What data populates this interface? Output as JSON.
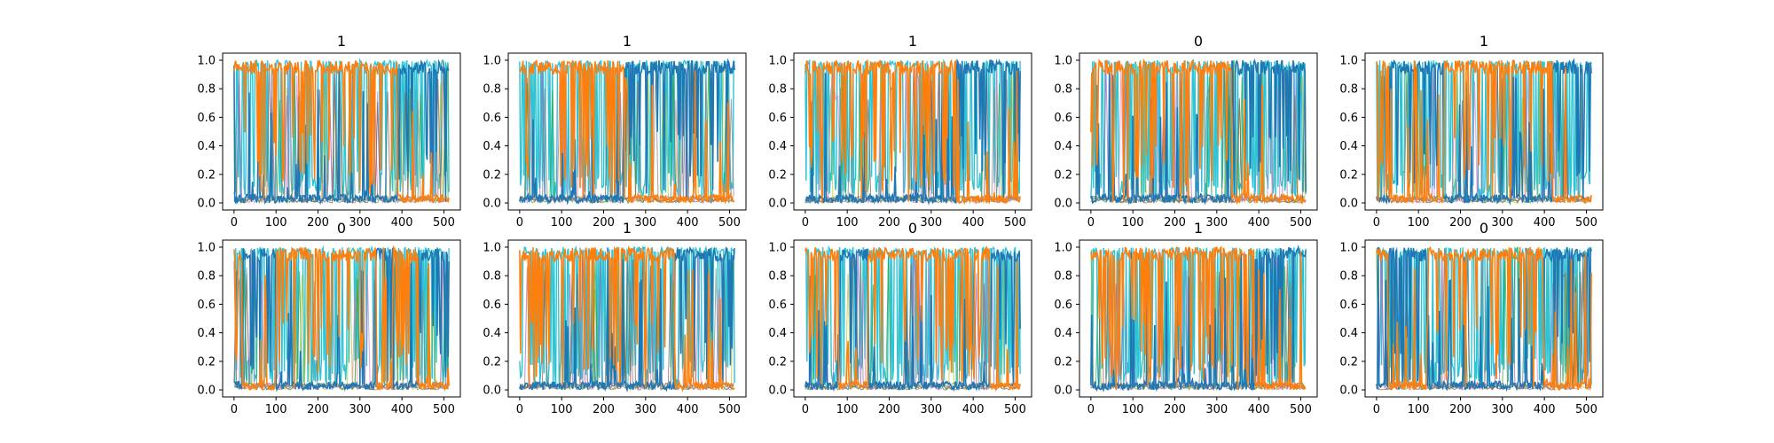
{
  "figure": {
    "layout": {
      "rows": 2,
      "cols": 5
    }
  },
  "colors": {
    "series_a": "#ff7f0e",
    "series_b": "#1f77b4",
    "series_c": "#17becf",
    "accents": [
      "#bcbd22",
      "#e377c2",
      "#9467bd",
      "#2ca02c",
      "#8c564b",
      "#7f7f7f"
    ]
  },
  "chart_data": [
    {
      "type": "line",
      "title": "1",
      "xlim": [
        0,
        512
      ],
      "ylim": [
        0,
        1
      ],
      "xticks": [
        0,
        100,
        200,
        300,
        400,
        500
      ],
      "yticks": [
        0.0,
        0.2,
        0.4,
        0.6,
        0.8,
        1.0
      ],
      "xtick_labels": [
        "0",
        "100",
        "200",
        "300",
        "400",
        "500"
      ],
      "ytick_labels": [
        "0.0",
        "0.2",
        "0.4",
        "0.6",
        "0.8",
        "1.0"
      ],
      "grid": false,
      "legend": null,
      "segments": [
        {
          "x": [
            0,
            390
          ],
          "dominant": "series_a"
        },
        {
          "x": [
            390,
            512
          ],
          "dominant": "series_b"
        }
      ]
    },
    {
      "type": "line",
      "title": "1",
      "xlim": [
        0,
        512
      ],
      "ylim": [
        0,
        1
      ],
      "xticks": [
        0,
        100,
        200,
        300,
        400,
        500
      ],
      "yticks": [
        0.0,
        0.2,
        0.4,
        0.6,
        0.8,
        1.0
      ],
      "xtick_labels": [
        "0",
        "100",
        "200",
        "300",
        "400",
        "500"
      ],
      "ytick_labels": [
        "0.0",
        "0.2",
        "0.4",
        "0.6",
        "0.8",
        "1.0"
      ],
      "grid": false,
      "legend": null,
      "segments": [
        {
          "x": [
            0,
            250
          ],
          "dominant": "series_a"
        },
        {
          "x": [
            250,
            512
          ],
          "dominant": "series_b"
        }
      ]
    },
    {
      "type": "line",
      "title": "1",
      "xlim": [
        0,
        512
      ],
      "ylim": [
        0,
        1
      ],
      "xticks": [
        0,
        100,
        200,
        300,
        400,
        500
      ],
      "yticks": [
        0.0,
        0.2,
        0.4,
        0.6,
        0.8,
        1.0
      ],
      "xtick_labels": [
        "0",
        "100",
        "200",
        "300",
        "400",
        "500"
      ],
      "ytick_labels": [
        "0.0",
        "0.2",
        "0.4",
        "0.6",
        "0.8",
        "1.0"
      ],
      "grid": false,
      "legend": null,
      "segments": [
        {
          "x": [
            0,
            360
          ],
          "dominant": "series_a"
        },
        {
          "x": [
            360,
            512
          ],
          "dominant": "series_b"
        }
      ]
    },
    {
      "type": "line",
      "title": "0",
      "xlim": [
        0,
        512
      ],
      "ylim": [
        0,
        1
      ],
      "xticks": [
        0,
        100,
        200,
        300,
        400,
        500
      ],
      "yticks": [
        0.0,
        0.2,
        0.4,
        0.6,
        0.8,
        1.0
      ],
      "xtick_labels": [
        "0",
        "100",
        "200",
        "300",
        "400",
        "500"
      ],
      "ytick_labels": [
        "0.0",
        "0.2",
        "0.4",
        "0.6",
        "0.8",
        "1.0"
      ],
      "grid": false,
      "legend": null,
      "segments": [
        {
          "x": [
            0,
            335
          ],
          "dominant": "series_a"
        },
        {
          "x": [
            335,
            512
          ],
          "dominant": "series_b"
        }
      ]
    },
    {
      "type": "line",
      "title": "1",
      "xlim": [
        0,
        512
      ],
      "ylim": [
        0,
        1
      ],
      "xticks": [
        0,
        100,
        200,
        300,
        400,
        500
      ],
      "yticks": [
        0.0,
        0.2,
        0.4,
        0.6,
        0.8,
        1.0
      ],
      "xtick_labels": [
        "0",
        "100",
        "200",
        "300",
        "400",
        "500"
      ],
      "ytick_labels": [
        "0.0",
        "0.2",
        "0.4",
        "0.6",
        "0.8",
        "1.0"
      ],
      "grid": false,
      "legend": null,
      "segments": [
        {
          "x": [
            0,
            30
          ],
          "dominant": "series_a"
        },
        {
          "x": [
            30,
            160
          ],
          "dominant": "series_b"
        },
        {
          "x": [
            160,
            420
          ],
          "dominant": "series_a"
        },
        {
          "x": [
            420,
            512
          ],
          "dominant": "series_b"
        }
      ]
    },
    {
      "type": "line",
      "title": "0",
      "xlim": [
        0,
        512
      ],
      "ylim": [
        0,
        1
      ],
      "xticks": [
        0,
        100,
        200,
        300,
        400,
        500
      ],
      "yticks": [
        0.0,
        0.2,
        0.4,
        0.6,
        0.8,
        1.0
      ],
      "xtick_labels": [
        "0",
        "100",
        "200",
        "300",
        "400",
        "500"
      ],
      "ytick_labels": [
        "0.0",
        "0.2",
        "0.4",
        "0.6",
        "0.8",
        "1.0"
      ],
      "grid": false,
      "legend": null,
      "segments": [
        {
          "x": [
            0,
            20
          ],
          "dominant": "series_a"
        },
        {
          "x": [
            20,
            100
          ],
          "dominant": "series_b"
        },
        {
          "x": [
            100,
            340
          ],
          "dominant": "series_a"
        },
        {
          "x": [
            340,
            380
          ],
          "dominant": "series_b"
        },
        {
          "x": [
            380,
            440
          ],
          "dominant": "series_a"
        },
        {
          "x": [
            440,
            512
          ],
          "dominant": "series_b"
        }
      ]
    },
    {
      "type": "line",
      "title": "1",
      "xlim": [
        0,
        512
      ],
      "ylim": [
        0,
        1
      ],
      "xticks": [
        0,
        100,
        200,
        300,
        400,
        500
      ],
      "yticks": [
        0.0,
        0.2,
        0.4,
        0.6,
        0.8,
        1.0
      ],
      "xtick_labels": [
        "0",
        "100",
        "200",
        "300",
        "400",
        "500"
      ],
      "ytick_labels": [
        "0.0",
        "0.2",
        "0.4",
        "0.6",
        "0.8",
        "1.0"
      ],
      "grid": false,
      "legend": null,
      "segments": [
        {
          "x": [
            0,
            370
          ],
          "dominant": "series_a"
        },
        {
          "x": [
            370,
            512
          ],
          "dominant": "series_b"
        }
      ]
    },
    {
      "type": "line",
      "title": "0",
      "xlim": [
        0,
        512
      ],
      "ylim": [
        0,
        1
      ],
      "xticks": [
        0,
        100,
        200,
        300,
        400,
        500
      ],
      "yticks": [
        0.0,
        0.2,
        0.4,
        0.6,
        0.8,
        1.0
      ],
      "xtick_labels": [
        "0",
        "100",
        "200",
        "300",
        "400",
        "500"
      ],
      "ytick_labels": [
        "0.0",
        "0.2",
        "0.4",
        "0.6",
        "0.8",
        "1.0"
      ],
      "grid": false,
      "legend": null,
      "segments": [
        {
          "x": [
            0,
            80
          ],
          "dominant": "series_a"
        },
        {
          "x": [
            80,
            150
          ],
          "dominant": "series_b"
        },
        {
          "x": [
            150,
            440
          ],
          "dominant": "series_a"
        },
        {
          "x": [
            440,
            512
          ],
          "dominant": "series_b"
        }
      ]
    },
    {
      "type": "line",
      "title": "1",
      "xlim": [
        0,
        512
      ],
      "ylim": [
        0,
        1
      ],
      "xticks": [
        0,
        100,
        200,
        300,
        400,
        500
      ],
      "yticks": [
        0.0,
        0.2,
        0.4,
        0.6,
        0.8,
        1.0
      ],
      "xtick_labels": [
        "0",
        "100",
        "200",
        "300",
        "400",
        "500"
      ],
      "ytick_labels": [
        "0.0",
        "0.2",
        "0.4",
        "0.6",
        "0.8",
        "1.0"
      ],
      "grid": false,
      "legend": null,
      "segments": [
        {
          "x": [
            0,
            390
          ],
          "dominant": "series_a"
        },
        {
          "x": [
            390,
            512
          ],
          "dominant": "series_b"
        }
      ]
    },
    {
      "type": "line",
      "title": "0",
      "xlim": [
        0,
        512
      ],
      "ylim": [
        0,
        1
      ],
      "xticks": [
        0,
        100,
        200,
        300,
        400,
        500
      ],
      "yticks": [
        0.0,
        0.2,
        0.4,
        0.6,
        0.8,
        1.0
      ],
      "xtick_labels": [
        "0",
        "100",
        "200",
        "300",
        "400",
        "500"
      ],
      "ytick_labels": [
        "0.0",
        "0.2",
        "0.4",
        "0.6",
        "0.8",
        "1.0"
      ],
      "grid": false,
      "legend": null,
      "segments": [
        {
          "x": [
            0,
            30
          ],
          "dominant": "series_a"
        },
        {
          "x": [
            30,
            120
          ],
          "dominant": "series_b"
        },
        {
          "x": [
            120,
            400
          ],
          "dominant": "series_a"
        },
        {
          "x": [
            400,
            512
          ],
          "dominant": "series_b"
        }
      ]
    }
  ]
}
